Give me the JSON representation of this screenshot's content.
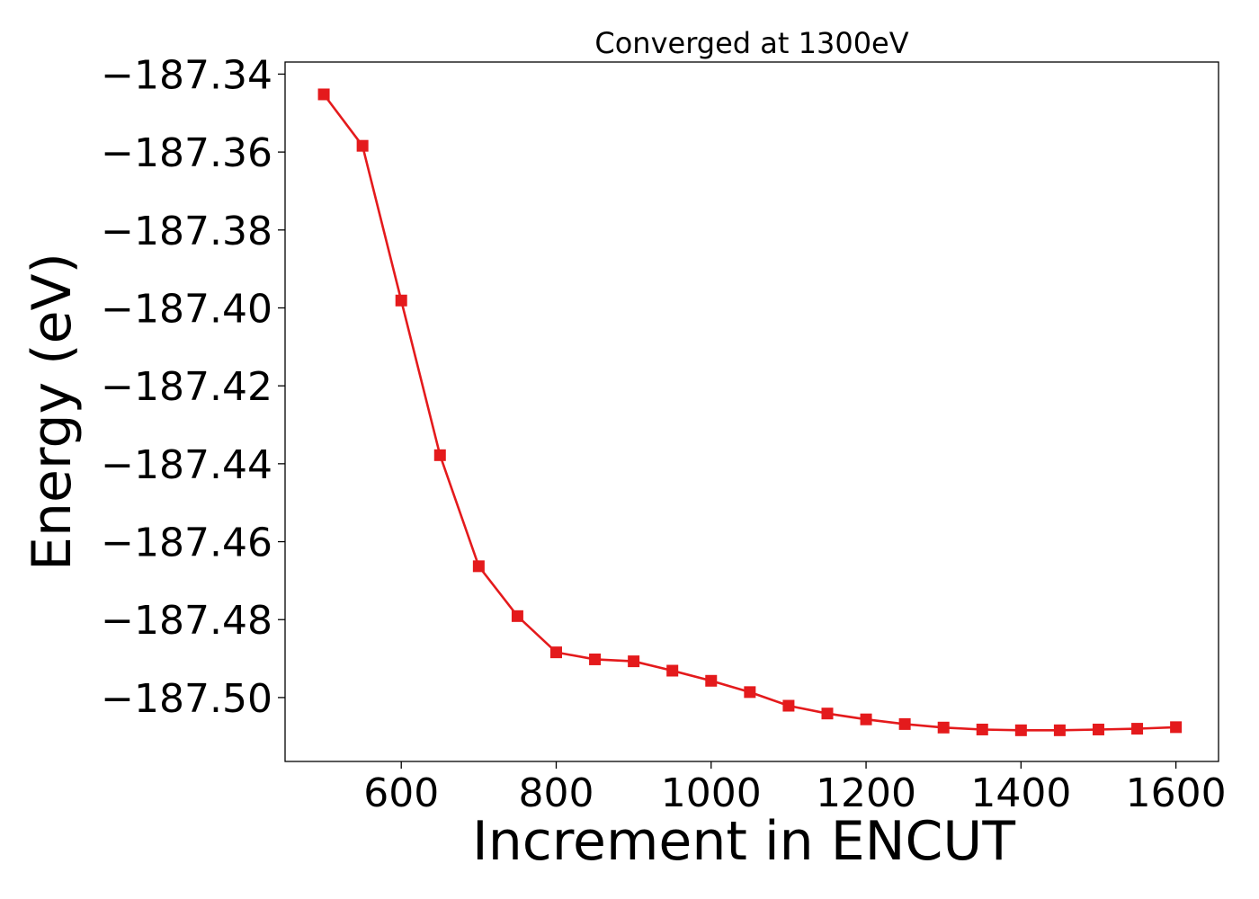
{
  "chart_data": {
    "type": "line",
    "title": "Converged at 1300eV",
    "xlabel": "Increment in ENCUT",
    "ylabel": "Energy (eV)",
    "xlim": [
      450,
      1655
    ],
    "ylim": [
      -187.5164,
      -187.3369
    ],
    "x_ticks": [
      600,
      800,
      1000,
      1200,
      1400,
      1600
    ],
    "x_tick_labels": [
      "600",
      "800",
      "1000",
      "1200",
      "1400",
      "1600"
    ],
    "y_ticks": [
      -187.34,
      -187.36,
      -187.38,
      -187.4,
      -187.42,
      -187.44,
      -187.46,
      -187.48,
      -187.5
    ],
    "y_tick_labels": [
      "−187.34",
      "−187.36",
      "−187.38",
      "−187.40",
      "−187.42",
      "−187.44",
      "−187.46",
      "−187.48",
      "−187.50"
    ],
    "grid": false,
    "legend": "none",
    "series": [
      {
        "color": "#e41a1c",
        "marker": "square",
        "x": [
          500,
          550,
          600,
          650,
          700,
          750,
          800,
          850,
          900,
          950,
          1000,
          1050,
          1100,
          1150,
          1200,
          1250,
          1300,
          1350,
          1400,
          1450,
          1500,
          1550,
          1600
        ],
        "y": [
          -187.3452,
          -187.3584,
          -187.3981,
          -187.4378,
          -187.4663,
          -187.4791,
          -187.4884,
          -187.4902,
          -187.4907,
          -187.4931,
          -187.4957,
          -187.4986,
          -187.5021,
          -187.5041,
          -187.5056,
          -187.5068,
          -187.5077,
          -187.5082,
          -187.5084,
          -187.5084,
          -187.5082,
          -187.508,
          -187.5076
        ]
      }
    ]
  }
}
